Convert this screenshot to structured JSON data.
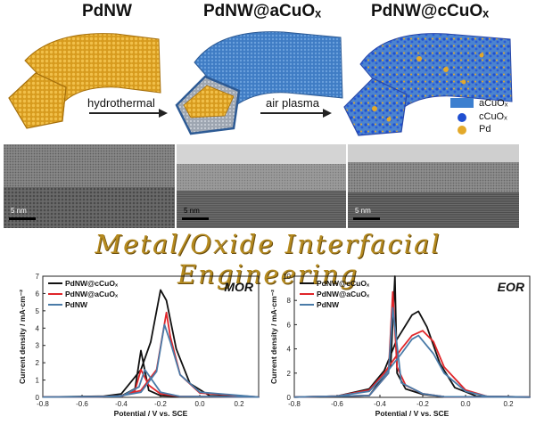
{
  "titles": {
    "pdnw": "PdNW",
    "a": "PdNW@aCuOₓ",
    "c": "PdNW@cCuOₓ"
  },
  "arrows": {
    "hydro": "hydrothermal",
    "plasma": "air plasma"
  },
  "legend": {
    "a": "aCuOₓ",
    "c": "cCuOₓ",
    "pd": "Pd"
  },
  "tem": {
    "scale": "5 nm"
  },
  "banner": "Metal/Oxide Interfacial Engineering",
  "colors": {
    "pd": "#e3a92a",
    "acuox": "#3c7fcf",
    "ccuox": "#1f4fd1",
    "black": "#111111",
    "red": "#e0262a",
    "blue": "#4a7ba8",
    "banner": "#b58a1f"
  },
  "chart_data": [
    {
      "type": "line",
      "annotation": "MOR",
      "xlabel": "Potential / V vs. SCE",
      "ylabel": "Current density / mA·cm⁻²",
      "xlim": [
        -0.8,
        0.3
      ],
      "ylim": [
        0,
        7
      ],
      "xticks": [
        "-0.8",
        "-0.6",
        "-0.4",
        "-0.2",
        "0.0",
        "0.2"
      ],
      "yticks": [
        "0",
        "1",
        "2",
        "3",
        "4",
        "5",
        "6",
        "7"
      ],
      "legend_position": "top-left",
      "series": [
        {
          "name": "PdNW@cCuOₓ",
          "color": "#111111",
          "forward": [
            [
              -0.8,
              0.02
            ],
            [
              -0.5,
              0.05
            ],
            [
              -0.4,
              0.2
            ],
            [
              -0.3,
              1.6
            ],
            [
              -0.25,
              3.2
            ],
            [
              -0.2,
              6.2
            ],
            [
              -0.17,
              5.6
            ],
            [
              -0.12,
              2.8
            ],
            [
              -0.05,
              0.8
            ],
            [
              0.05,
              0.1
            ],
            [
              0.3,
              0.02
            ]
          ],
          "reverse": [
            [
              0.3,
              0.02
            ],
            [
              -0.1,
              0.05
            ],
            [
              -0.2,
              0.1
            ],
            [
              -0.26,
              0.4
            ],
            [
              -0.3,
              2.7
            ],
            [
              -0.33,
              0.5
            ],
            [
              -0.4,
              0.08
            ],
            [
              -0.8,
              0.02
            ]
          ]
        },
        {
          "name": "PdNW@aCuOₓ",
          "color": "#e0262a",
          "forward": [
            [
              -0.8,
              0.02
            ],
            [
              -0.5,
              0.03
            ],
            [
              -0.4,
              0.1
            ],
            [
              -0.3,
              0.4
            ],
            [
              -0.22,
              1.6
            ],
            [
              -0.17,
              4.9
            ],
            [
              -0.15,
              3.5
            ],
            [
              -0.1,
              1.3
            ],
            [
              0,
              0.25
            ],
            [
              0.3,
              0.02
            ]
          ],
          "reverse": [
            [
              0.3,
              0.02
            ],
            [
              -0.1,
              0.05
            ],
            [
              -0.2,
              0.2
            ],
            [
              -0.26,
              0.7
            ],
            [
              -0.3,
              1.6
            ],
            [
              -0.33,
              0.4
            ],
            [
              -0.4,
              0.05
            ],
            [
              -0.8,
              0.02
            ]
          ]
        },
        {
          "name": "PdNW",
          "color": "#4a7ba8",
          "forward": [
            [
              -0.8,
              0.02
            ],
            [
              -0.5,
              0.03
            ],
            [
              -0.4,
              0.1
            ],
            [
              -0.3,
              0.3
            ],
            [
              -0.22,
              1.5
            ],
            [
              -0.18,
              4.2
            ],
            [
              -0.15,
              3.2
            ],
            [
              -0.1,
              1.3
            ],
            [
              0,
              0.3
            ],
            [
              0.3,
              0.02
            ]
          ],
          "reverse": [
            [
              0.3,
              0.02
            ],
            [
              -0.1,
              0.05
            ],
            [
              -0.2,
              0.3
            ],
            [
              -0.28,
              1.6
            ],
            [
              -0.31,
              0.6
            ],
            [
              -0.4,
              0.05
            ],
            [
              -0.8,
              0.02
            ]
          ]
        }
      ]
    },
    {
      "type": "line",
      "annotation": "EOR",
      "xlabel": "Potential / V vs. SCE",
      "ylabel": "Current density / mA·cm⁻²",
      "xlim": [
        -0.8,
        0.3
      ],
      "ylim": [
        0,
        10
      ],
      "xticks": [
        "-0.8",
        "-0.6",
        "-0.4",
        "-0.2",
        "0.0",
        "0.2"
      ],
      "yticks": [
        "0",
        "2",
        "4",
        "6",
        "8",
        "10"
      ],
      "legend_position": "top-left",
      "series": [
        {
          "name": "PdNW@cCuOₓ",
          "color": "#111111",
          "forward": [
            [
              -0.8,
              0.02
            ],
            [
              -0.6,
              0.1
            ],
            [
              -0.45,
              0.7
            ],
            [
              -0.38,
              2.2
            ],
            [
              -0.32,
              4.8
            ],
            [
              -0.25,
              6.8
            ],
            [
              -0.22,
              7.1
            ],
            [
              -0.18,
              5.8
            ],
            [
              -0.12,
              2.8
            ],
            [
              -0.05,
              0.8
            ],
            [
              0.05,
              0.1
            ],
            [
              0.3,
              0.02
            ]
          ],
          "reverse": [
            [
              0.3,
              0.02
            ],
            [
              -0.1,
              0.05
            ],
            [
              -0.2,
              0.25
            ],
            [
              -0.28,
              0.7
            ],
            [
              -0.32,
              2.0
            ],
            [
              -0.33,
              10
            ],
            [
              -0.35,
              2.5
            ],
            [
              -0.45,
              0.15
            ],
            [
              -0.8,
              0.02
            ]
          ]
        },
        {
          "name": "PdNW@aCuOₓ",
          "color": "#e0262a",
          "forward": [
            [
              -0.8,
              0.02
            ],
            [
              -0.6,
              0.1
            ],
            [
              -0.45,
              0.6
            ],
            [
              -0.38,
              2.0
            ],
            [
              -0.3,
              4.0
            ],
            [
              -0.25,
              5.1
            ],
            [
              -0.2,
              5.5
            ],
            [
              -0.15,
              4.6
            ],
            [
              -0.1,
              2.5
            ],
            [
              0,
              0.6
            ],
            [
              0.1,
              0.08
            ],
            [
              0.3,
              0.02
            ]
          ],
          "reverse": [
            [
              0.3,
              0.02
            ],
            [
              -0.1,
              0.05
            ],
            [
              -0.2,
              0.3
            ],
            [
              -0.28,
              1.0
            ],
            [
              -0.32,
              2.5
            ],
            [
              -0.34,
              8.7
            ],
            [
              -0.36,
              2.0
            ],
            [
              -0.45,
              0.15
            ],
            [
              -0.8,
              0.02
            ]
          ]
        },
        {
          "name": "PdNW",
          "color": "#4a7ba8",
          "forward": [
            [
              -0.8,
              0.02
            ],
            [
              -0.6,
              0.1
            ],
            [
              -0.45,
              0.5
            ],
            [
              -0.38,
              1.8
            ],
            [
              -0.3,
              3.6
            ],
            [
              -0.25,
              4.8
            ],
            [
              -0.22,
              5.1
            ],
            [
              -0.15,
              3.6
            ],
            [
              -0.1,
              2.0
            ],
            [
              0,
              0.5
            ],
            [
              0.1,
              0.08
            ],
            [
              0.3,
              0.02
            ]
          ],
          "reverse": [
            [
              0.3,
              0.02
            ],
            [
              -0.1,
              0.05
            ],
            [
              -0.2,
              0.3
            ],
            [
              -0.3,
              1.2
            ],
            [
              -0.34,
              7.4
            ],
            [
              -0.36,
              2.0
            ],
            [
              -0.45,
              0.15
            ],
            [
              -0.8,
              0.02
            ]
          ]
        }
      ]
    }
  ]
}
